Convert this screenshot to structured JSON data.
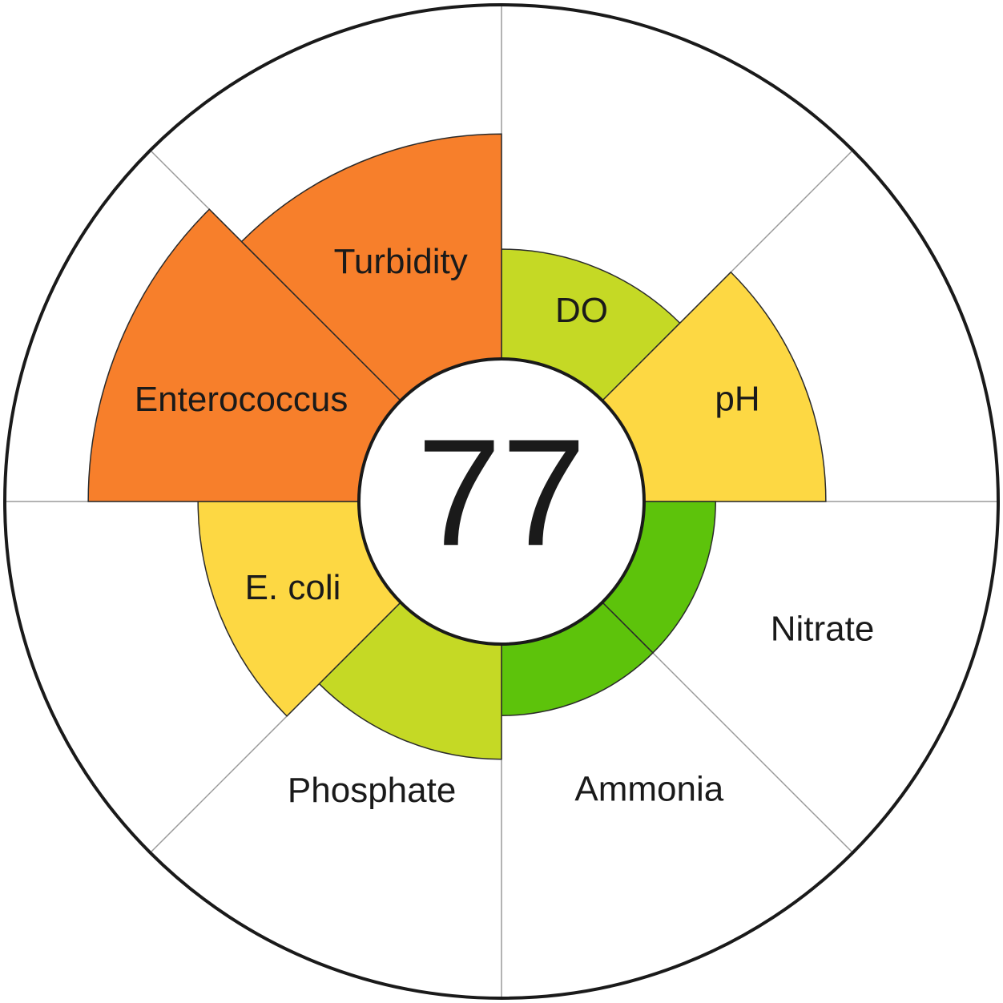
{
  "chart_data": {
    "type": "polar-area",
    "score": 77,
    "categories": [
      "DO",
      "pH",
      "Nitrate",
      "Ammonia",
      "Phosphate",
      "E. coli",
      "Enterococcus",
      "Turbidity"
    ],
    "values": [
      50.8,
      65.3,
      43.1,
      43.1,
      51.9,
      61.1,
      83.2,
      74.0
    ],
    "colors": [
      "#c5d925",
      "#fdd843",
      "#5dc30b",
      "#5dc30b",
      "#c5d925",
      "#fdd843",
      "#f77f2b",
      "#f77f2b"
    ],
    "rlim": [
      0,
      100
    ]
  }
}
